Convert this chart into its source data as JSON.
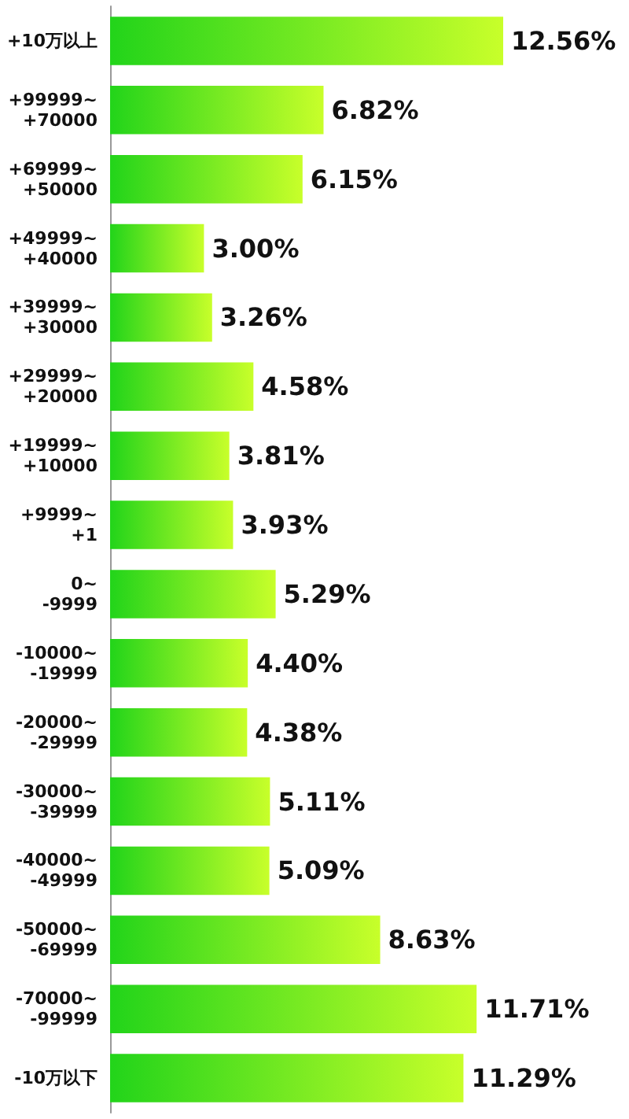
{
  "chart_data": {
    "type": "bar",
    "orientation": "horizontal",
    "categories": [
      "+10万以上",
      "+99999~\n+70000",
      "+69999~\n+50000",
      "+49999~\n+40000",
      "+39999~\n+30000",
      "+29999~\n+20000",
      "+19999~\n+10000",
      "+9999~\n+1",
      "0~\n-9999",
      "-10000~\n-19999",
      "-20000~\n-29999",
      "-30000~\n-39999",
      "-40000~\n-49999",
      "-50000~\n-69999",
      "-70000~\n-99999",
      "-10万以下"
    ],
    "values": [
      12.56,
      6.82,
      6.15,
      3.0,
      3.26,
      4.58,
      3.81,
      3.93,
      5.29,
      4.4,
      4.38,
      5.11,
      5.09,
      8.63,
      11.71,
      11.29
    ],
    "value_labels": [
      "12.56%",
      "6.82%",
      "6.15%",
      "3.00%",
      "3.26%",
      "4.58%",
      "3.81%",
      "3.93%",
      "5.29%",
      "4.40%",
      "4.38%",
      "5.11%",
      "5.09%",
      "8.63%",
      "11.71%",
      "11.29%"
    ],
    "color": "#22d41a"
  }
}
